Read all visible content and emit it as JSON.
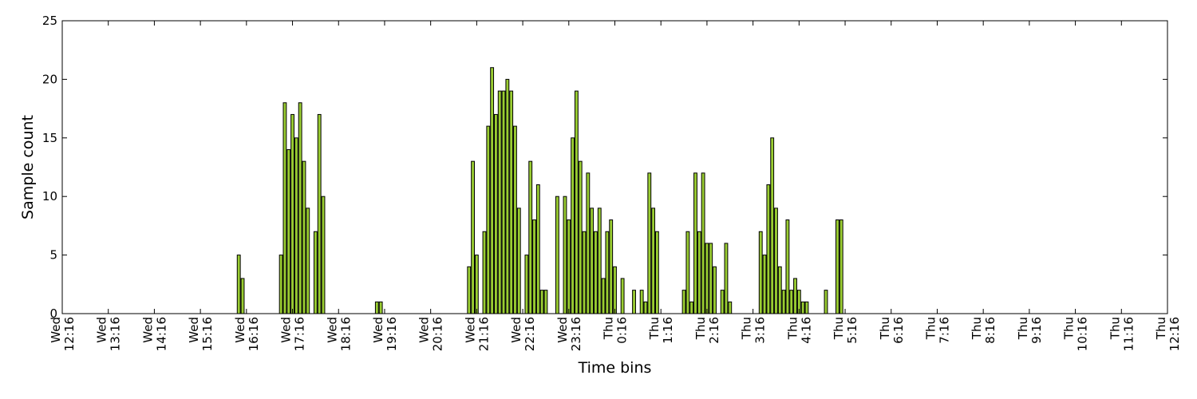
{
  "chart_data": {
    "type": "bar",
    "xlabel": "Time bins",
    "ylabel": "Sample count",
    "ylim": [
      0,
      25
    ],
    "y_ticks": [
      0,
      5,
      10,
      15,
      20,
      25
    ],
    "x_ticks": [
      {
        "day": "Wed",
        "time": "12:16"
      },
      {
        "day": "Wed",
        "time": "13:16"
      },
      {
        "day": "Wed",
        "time": "14:16"
      },
      {
        "day": "Wed",
        "time": "15:16"
      },
      {
        "day": "Wed",
        "time": "16:16"
      },
      {
        "day": "Wed",
        "time": "17:16"
      },
      {
        "day": "Wed",
        "time": "18:16"
      },
      {
        "day": "Wed",
        "time": "19:16"
      },
      {
        "day": "Wed",
        "time": "20:16"
      },
      {
        "day": "Wed",
        "time": "21:16"
      },
      {
        "day": "Wed",
        "time": "22:16"
      },
      {
        "day": "Wed",
        "time": "23:16"
      },
      {
        "day": "Thu",
        "time": "0:16"
      },
      {
        "day": "Thu",
        "time": "1:16"
      },
      {
        "day": "Thu",
        "time": "2:16"
      },
      {
        "day": "Thu",
        "time": "3:16"
      },
      {
        "day": "Thu",
        "time": "4:16"
      },
      {
        "day": "Thu",
        "time": "5:16"
      },
      {
        "day": "Thu",
        "time": "6:16"
      },
      {
        "day": "Thu",
        "time": "7:16"
      },
      {
        "day": "Thu",
        "time": "8:16"
      },
      {
        "day": "Thu",
        "time": "9:16"
      },
      {
        "day": "Thu",
        "time": "10:16"
      },
      {
        "day": "Thu",
        "time": "11:16"
      },
      {
        "day": "Thu",
        "time": "12:16"
      }
    ],
    "bar_color": "#9acd32",
    "bar_edge_color": "#000000",
    "grid": false,
    "bars": [
      {
        "t": "Wed 16:04",
        "v": 5
      },
      {
        "t": "Wed 16:09",
        "v": 3
      },
      {
        "t": "Wed 16:59",
        "v": 5
      },
      {
        "t": "Wed 17:04",
        "v": 18
      },
      {
        "t": "Wed 17:09",
        "v": 14
      },
      {
        "t": "Wed 17:14",
        "v": 17
      },
      {
        "t": "Wed 17:19",
        "v": 15
      },
      {
        "t": "Wed 17:24",
        "v": 18
      },
      {
        "t": "Wed 17:29",
        "v": 13
      },
      {
        "t": "Wed 17:34",
        "v": 9
      },
      {
        "t": "Wed 17:44",
        "v": 7
      },
      {
        "t": "Wed 17:49",
        "v": 17
      },
      {
        "t": "Wed 17:54",
        "v": 10
      },
      {
        "t": "Wed 19:04",
        "v": 1
      },
      {
        "t": "Wed 19:09",
        "v": 1
      },
      {
        "t": "Wed 21:04",
        "v": 4
      },
      {
        "t": "Wed 21:09",
        "v": 13
      },
      {
        "t": "Wed 21:14",
        "v": 5
      },
      {
        "t": "Wed 21:24",
        "v": 7
      },
      {
        "t": "Wed 21:29",
        "v": 16
      },
      {
        "t": "Wed 21:34",
        "v": 21
      },
      {
        "t": "Wed 21:39",
        "v": 17
      },
      {
        "t": "Wed 21:44",
        "v": 19
      },
      {
        "t": "Wed 21:49",
        "v": 19
      },
      {
        "t": "Wed 21:54",
        "v": 20
      },
      {
        "t": "Wed 21:59",
        "v": 19
      },
      {
        "t": "Wed 22:04",
        "v": 16
      },
      {
        "t": "Wed 22:09",
        "v": 9
      },
      {
        "t": "Wed 22:19",
        "v": 5
      },
      {
        "t": "Wed 22:24",
        "v": 13
      },
      {
        "t": "Wed 22:29",
        "v": 8
      },
      {
        "t": "Wed 22:34",
        "v": 11
      },
      {
        "t": "Wed 22:39",
        "v": 2
      },
      {
        "t": "Wed 22:44",
        "v": 2
      },
      {
        "t": "Wed 22:59",
        "v": 10
      },
      {
        "t": "Wed 23:09",
        "v": 10
      },
      {
        "t": "Wed 23:14",
        "v": 8
      },
      {
        "t": "Wed 23:19",
        "v": 15
      },
      {
        "t": "Wed 23:24",
        "v": 19
      },
      {
        "t": "Wed 23:29",
        "v": 13
      },
      {
        "t": "Wed 23:34",
        "v": 7
      },
      {
        "t": "Wed 23:39",
        "v": 12
      },
      {
        "t": "Wed 23:44",
        "v": 9
      },
      {
        "t": "Wed 23:49",
        "v": 7
      },
      {
        "t": "Wed 23:54",
        "v": 9
      },
      {
        "t": "Wed 23:59",
        "v": 3
      },
      {
        "t": "Thu 0:04",
        "v": 7
      },
      {
        "t": "Thu 0:09",
        "v": 8
      },
      {
        "t": "Thu 0:14",
        "v": 4
      },
      {
        "t": "Thu 0:24",
        "v": 3
      },
      {
        "t": "Thu 0:39",
        "v": 2
      },
      {
        "t": "Thu 0:49",
        "v": 2
      },
      {
        "t": "Thu 0:54",
        "v": 1
      },
      {
        "t": "Thu 0:59",
        "v": 12
      },
      {
        "t": "Thu 1:04",
        "v": 9
      },
      {
        "t": "Thu 1:09",
        "v": 7
      },
      {
        "t": "Thu 1:44",
        "v": 2
      },
      {
        "t": "Thu 1:49",
        "v": 7
      },
      {
        "t": "Thu 1:54",
        "v": 1
      },
      {
        "t": "Thu 1:59",
        "v": 12
      },
      {
        "t": "Thu 2:04",
        "v": 7
      },
      {
        "t": "Thu 2:09",
        "v": 12
      },
      {
        "t": "Thu 2:14",
        "v": 6
      },
      {
        "t": "Thu 2:19",
        "v": 6
      },
      {
        "t": "Thu 2:24",
        "v": 4
      },
      {
        "t": "Thu 2:34",
        "v": 2
      },
      {
        "t": "Thu 2:39",
        "v": 6
      },
      {
        "t": "Thu 2:44",
        "v": 1
      },
      {
        "t": "Thu 3:24",
        "v": 7
      },
      {
        "t": "Thu 3:29",
        "v": 5
      },
      {
        "t": "Thu 3:34",
        "v": 11
      },
      {
        "t": "Thu 3:39",
        "v": 15
      },
      {
        "t": "Thu 3:44",
        "v": 9
      },
      {
        "t": "Thu 3:49",
        "v": 4
      },
      {
        "t": "Thu 3:54",
        "v": 2
      },
      {
        "t": "Thu 3:59",
        "v": 8
      },
      {
        "t": "Thu 4:04",
        "v": 2
      },
      {
        "t": "Thu 4:09",
        "v": 3
      },
      {
        "t": "Thu 4:14",
        "v": 2
      },
      {
        "t": "Thu 4:19",
        "v": 1
      },
      {
        "t": "Thu 4:24",
        "v": 1
      },
      {
        "t": "Thu 4:49",
        "v": 2
      },
      {
        "t": "Thu 5:04",
        "v": 8
      },
      {
        "t": "Thu 5:09",
        "v": 8
      }
    ]
  }
}
